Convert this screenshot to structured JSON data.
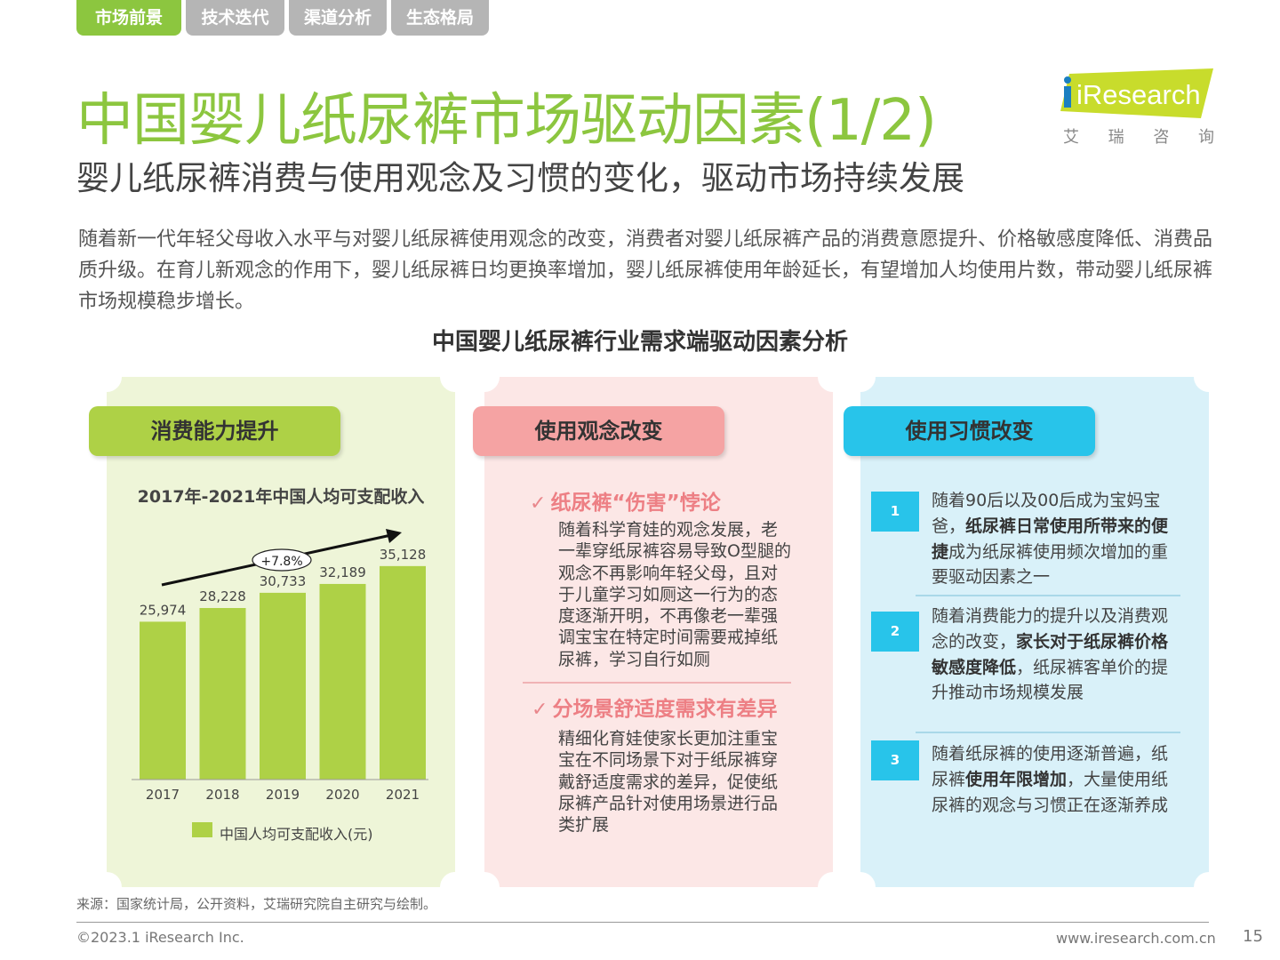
{
  "tabs": [
    {
      "label": "市场前景",
      "active": true
    },
    {
      "label": "技术迭代",
      "active": false
    },
    {
      "label": "渠道分析",
      "active": false
    },
    {
      "label": "生态格局",
      "active": false
    }
  ],
  "title": "中国婴儿纸尿裤市场驱动因素(1/2)",
  "subtitle": "婴儿纸尿裤消费与使用观念及习惯的变化，驱动市场持续发展",
  "logo": {
    "text": "iResearch",
    "cn": [
      "艾",
      "瑞",
      "咨",
      "询"
    ]
  },
  "intro": "随着新一代年轻父母收入水平与对婴儿纸尿裤使用观念的改变，消费者对婴儿纸尿裤产品的消费意愿提升、价格敏感度降低、消费品质升级。在育儿新观念的作用下，婴儿纸尿裤日均更换率增加，婴儿纸尿裤使用年龄延长，有望增加人均使用片数，带动婴儿纸尿裤市场规模稳步增长。",
  "section_title": "中国婴儿纸尿裤行业需求端驱动因素分析",
  "panels": {
    "consumption": {
      "header": "消费能力提升"
    },
    "concept": {
      "header": "使用观念改变",
      "points": [
        {
          "title": "纸尿裤“伤害”悖论",
          "body": "随着科学育娃的观念发展，老一辈穿纸尿裤容易导致O型腿的观念不再影响年轻父母，且对于儿童学习如厕这一行为的态度逐渐开明，不再像老一辈强调宝宝在特定时间需要戒掉纸尿裤，学习自行如厕"
        },
        {
          "title": "分场景舒适度需求有差异",
          "body": "精细化育娃使家长更加注重宝宝在不同场景下对于纸尿裤穿戴舒适度需求的差异，促使纸尿裤产品针对使用场景进行品类扩展"
        }
      ]
    },
    "habit": {
      "header": "使用习惯改变",
      "items": [
        {
          "num": "1",
          "pre": "随着90后以及00后成为宝妈宝爸，",
          "bold": "纸尿裤日常使用所带来的便捷",
          "post": "成为纸尿裤使用频次增加的重要驱动因素之一"
        },
        {
          "num": "2",
          "pre": "随着消费能力的提升以及消费观念的改变，",
          "bold": "家长对于纸尿裤价格敏感度降低",
          "post": "，纸尿裤客单价的提升推动市场规模发展"
        },
        {
          "num": "3",
          "pre": "随着纸尿裤的使用逐渐普遍，纸尿裤",
          "bold": "使用年限增加",
          "post": "，大量使用纸尿裤的观念与习惯正在逐渐养成"
        }
      ]
    }
  },
  "chart_data": {
    "type": "bar",
    "title": "2017年-2021年中国人均可支配收入",
    "categories": [
      "2017",
      "2018",
      "2019",
      "2020",
      "2021"
    ],
    "values": [
      25974,
      28228,
      30733,
      32189,
      35128
    ],
    "value_labels": [
      "25,974",
      "28,228",
      "30,733",
      "32,189",
      "35,128"
    ],
    "series": [
      {
        "name": "中国人均可支配收入(元)",
        "values": [
          25974,
          28228,
          30733,
          32189,
          35128
        ]
      }
    ],
    "growth_annotation": "+7.8%",
    "ylim": [
      0,
      40000
    ],
    "color": "#aed146",
    "legend_position": "bottom"
  },
  "footer": {
    "source": "来源：国家统计局，公开资料，艾瑞研究院自主研究与绘制。",
    "copyright": "©2023.1 iResearch Inc.",
    "website": "www.iresearch.com.cn",
    "page": "15"
  }
}
